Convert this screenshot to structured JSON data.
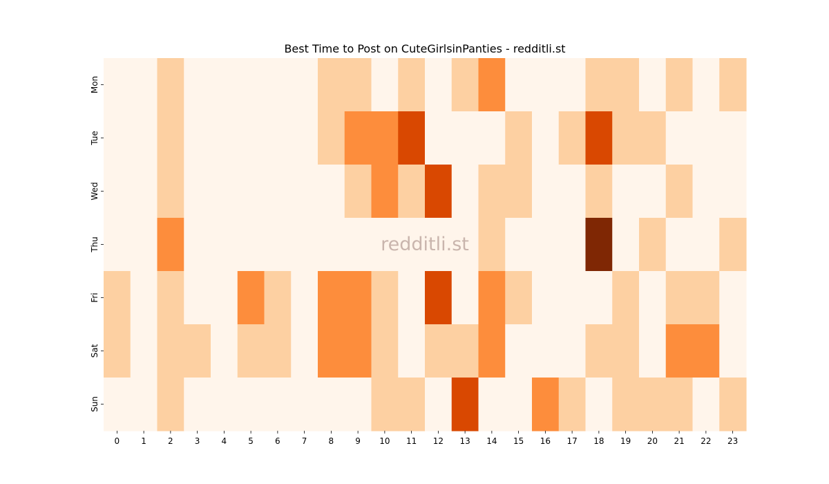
{
  "chart_data": {
    "type": "heatmap",
    "title": "Best Time to Post on CuteGirlsinPanties - redditli.st",
    "watermark": "redditli.st",
    "x_categories": [
      "0",
      "1",
      "2",
      "3",
      "4",
      "5",
      "6",
      "7",
      "8",
      "9",
      "10",
      "11",
      "12",
      "13",
      "14",
      "15",
      "16",
      "17",
      "18",
      "19",
      "20",
      "21",
      "22",
      "23"
    ],
    "y_categories": [
      "Mon",
      "Tue",
      "Wed",
      "Thu",
      "Fri",
      "Sat",
      "Sun"
    ],
    "xlabel": "",
    "ylabel": "",
    "colormap": "Oranges",
    "colorbar": false,
    "values": [
      [
        0,
        0,
        1,
        0,
        0,
        0,
        0,
        0,
        1,
        1,
        0,
        1,
        0,
        1,
        2,
        0,
        0,
        0,
        1,
        1,
        0,
        1,
        0,
        1
      ],
      [
        0,
        0,
        1,
        0,
        0,
        0,
        0,
        0,
        1,
        2,
        2,
        3,
        0,
        0,
        0,
        1,
        0,
        1,
        3,
        1,
        1,
        0,
        0,
        0
      ],
      [
        0,
        0,
        1,
        0,
        0,
        0,
        0,
        0,
        0,
        1,
        2,
        1,
        3,
        0,
        1,
        1,
        0,
        0,
        1,
        0,
        0,
        1,
        0,
        0
      ],
      [
        0,
        0,
        2,
        0,
        0,
        0,
        0,
        0,
        0,
        0,
        0,
        0,
        0,
        0,
        1,
        0,
        0,
        0,
        4,
        0,
        1,
        0,
        0,
        1
      ],
      [
        1,
        0,
        1,
        0,
        0,
        2,
        1,
        0,
        2,
        2,
        1,
        0,
        3,
        0,
        2,
        1,
        0,
        0,
        0,
        1,
        0,
        1,
        1,
        0
      ],
      [
        1,
        0,
        1,
        1,
        0,
        1,
        1,
        0,
        2,
        2,
        1,
        0,
        1,
        1,
        2,
        0,
        0,
        0,
        1,
        1,
        0,
        2,
        2,
        0
      ],
      [
        0,
        0,
        1,
        0,
        0,
        0,
        0,
        0,
        0,
        0,
        1,
        1,
        0,
        3,
        0,
        0,
        2,
        1,
        0,
        1,
        1,
        1,
        0,
        1
      ]
    ],
    "colors": [
      "#fff5eb",
      "#fdd0a2",
      "#fd8d3c",
      "#d94801",
      "#7f2704"
    ]
  }
}
